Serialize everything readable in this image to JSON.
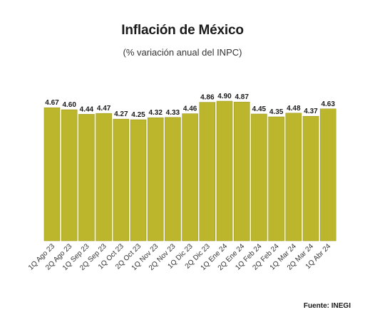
{
  "title": "Inflación de México",
  "subtitle": "(% variación anual del INPC)",
  "source": "Fuente: INEGI",
  "colors": {
    "bar": "#bcb62c",
    "bar_stroke": "#9f9a22"
  },
  "chart_data": {
    "type": "bar",
    "title": "Inflación de México",
    "subtitle": "(% variación anual del INPC)",
    "xlabel": "",
    "ylabel": "",
    "ylim": [
      0,
      5
    ],
    "grid": false,
    "categories": [
      "1Q Ago 23",
      "2Q Ago 23",
      "1Q Sep 23",
      "2Q Sep 23",
      "1Q Oct 23",
      "2Q Oct 23",
      "1Q Nov 23",
      "2Q Nov 23",
      "1Q Dic 23",
      "2Q Dic 23",
      "1Q Ene 24",
      "2Q Ene 24",
      "1Q Feb 24",
      "2Q Feb 24",
      "1Q Mar 24",
      "2Q Mar 24",
      "1Q Abr 24"
    ],
    "values": [
      4.67,
      4.6,
      4.44,
      4.47,
      4.27,
      4.25,
      4.32,
      4.33,
      4.46,
      4.86,
      4.9,
      4.87,
      4.45,
      4.35,
      4.48,
      4.37,
      4.63
    ],
    "value_labels": [
      "4.67",
      "4.60",
      "4.44",
      "4.47",
      "4.27",
      "4.25",
      "4.32",
      "4.33",
      "4.46",
      "4.86",
      "4.90",
      "4.87",
      "4.45",
      "4.35",
      "4.48",
      "4.37",
      "4.63"
    ]
  }
}
